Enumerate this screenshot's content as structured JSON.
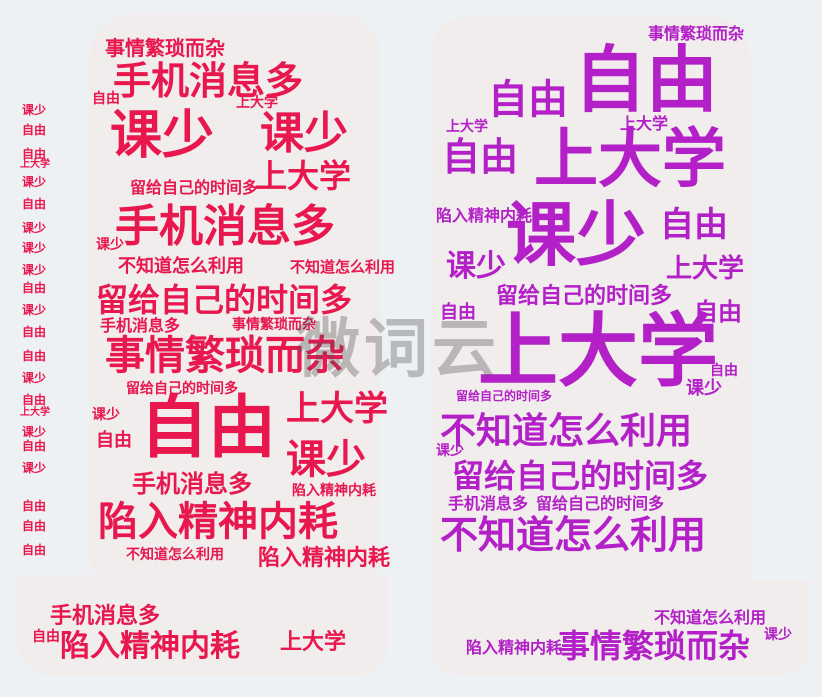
{
  "watermark": "微词云",
  "left_words": [
    {
      "text": "课少"
    },
    {
      "text": "手机消息多"
    },
    {
      "text": "事情繁琐而杂"
    },
    {
      "text": "自由"
    },
    {
      "text": "陷入精神内耗"
    },
    {
      "text": "上大学"
    },
    {
      "text": "留给自己的时间多"
    },
    {
      "text": "不知道怎么利用"
    },
    {
      "text": "手机消息多"
    },
    {
      "text": "课少"
    },
    {
      "text": "上大学"
    },
    {
      "text": "课少"
    },
    {
      "text": "手机消息多"
    },
    {
      "text": "陷入精神内耗"
    },
    {
      "text": "陷入精神内耗"
    },
    {
      "text": "事情繁琐而杂"
    },
    {
      "text": "留给自己的时间多"
    },
    {
      "text": "不知道怎么利用"
    },
    {
      "text": "不知道怎么利用"
    },
    {
      "text": "手机消息多"
    },
    {
      "text": "事情繁琐而杂"
    },
    {
      "text": "上大学"
    },
    {
      "text": "自由"
    },
    {
      "text": "自由"
    },
    {
      "text": "课少"
    },
    {
      "text": "留给自己的时间多"
    },
    {
      "text": "手机消息多"
    },
    {
      "text": "自由"
    },
    {
      "text": "课少"
    },
    {
      "text": "上大学"
    }
  ],
  "right_words": [
    {
      "text": "自由"
    },
    {
      "text": "自由"
    },
    {
      "text": "上大学"
    },
    {
      "text": "课少"
    },
    {
      "text": "上大学"
    },
    {
      "text": "不知道怎么利用"
    },
    {
      "text": "留给自己的时间多"
    },
    {
      "text": "不知道怎么利用"
    },
    {
      "text": "事情繁琐而杂"
    },
    {
      "text": "留给自己的时间多"
    },
    {
      "text": "自由"
    },
    {
      "text": "自由"
    },
    {
      "text": "课少"
    },
    {
      "text": "上大学"
    },
    {
      "text": "自由"
    },
    {
      "text": "陷入精神内耗"
    },
    {
      "text": "手机消息多"
    },
    {
      "text": "留给自己的时间多"
    },
    {
      "text": "事情繁琐而杂"
    },
    {
      "text": "课少"
    },
    {
      "text": "上大学"
    },
    {
      "text": "陷入精神内耗"
    },
    {
      "text": "自由"
    },
    {
      "text": "课少"
    }
  ],
  "left_edge_words": [
    {
      "text": "课少"
    },
    {
      "text": "自由"
    },
    {
      "text": "自由"
    },
    {
      "text": "上大学"
    },
    {
      "text": "课少"
    },
    {
      "text": "自由"
    },
    {
      "text": "课少"
    },
    {
      "text": "课少"
    },
    {
      "text": "自由"
    },
    {
      "text": "课少"
    },
    {
      "text": "自由"
    },
    {
      "text": "自由"
    },
    {
      "text": "课少"
    },
    {
      "text": "自由"
    },
    {
      "text": "自由"
    },
    {
      "text": "课少"
    },
    {
      "text": "上大学"
    },
    {
      "text": "课少"
    },
    {
      "text": "自由"
    },
    {
      "text": "自由"
    },
    {
      "text": "自由"
    },
    {
      "text": "课少"
    }
  ]
}
